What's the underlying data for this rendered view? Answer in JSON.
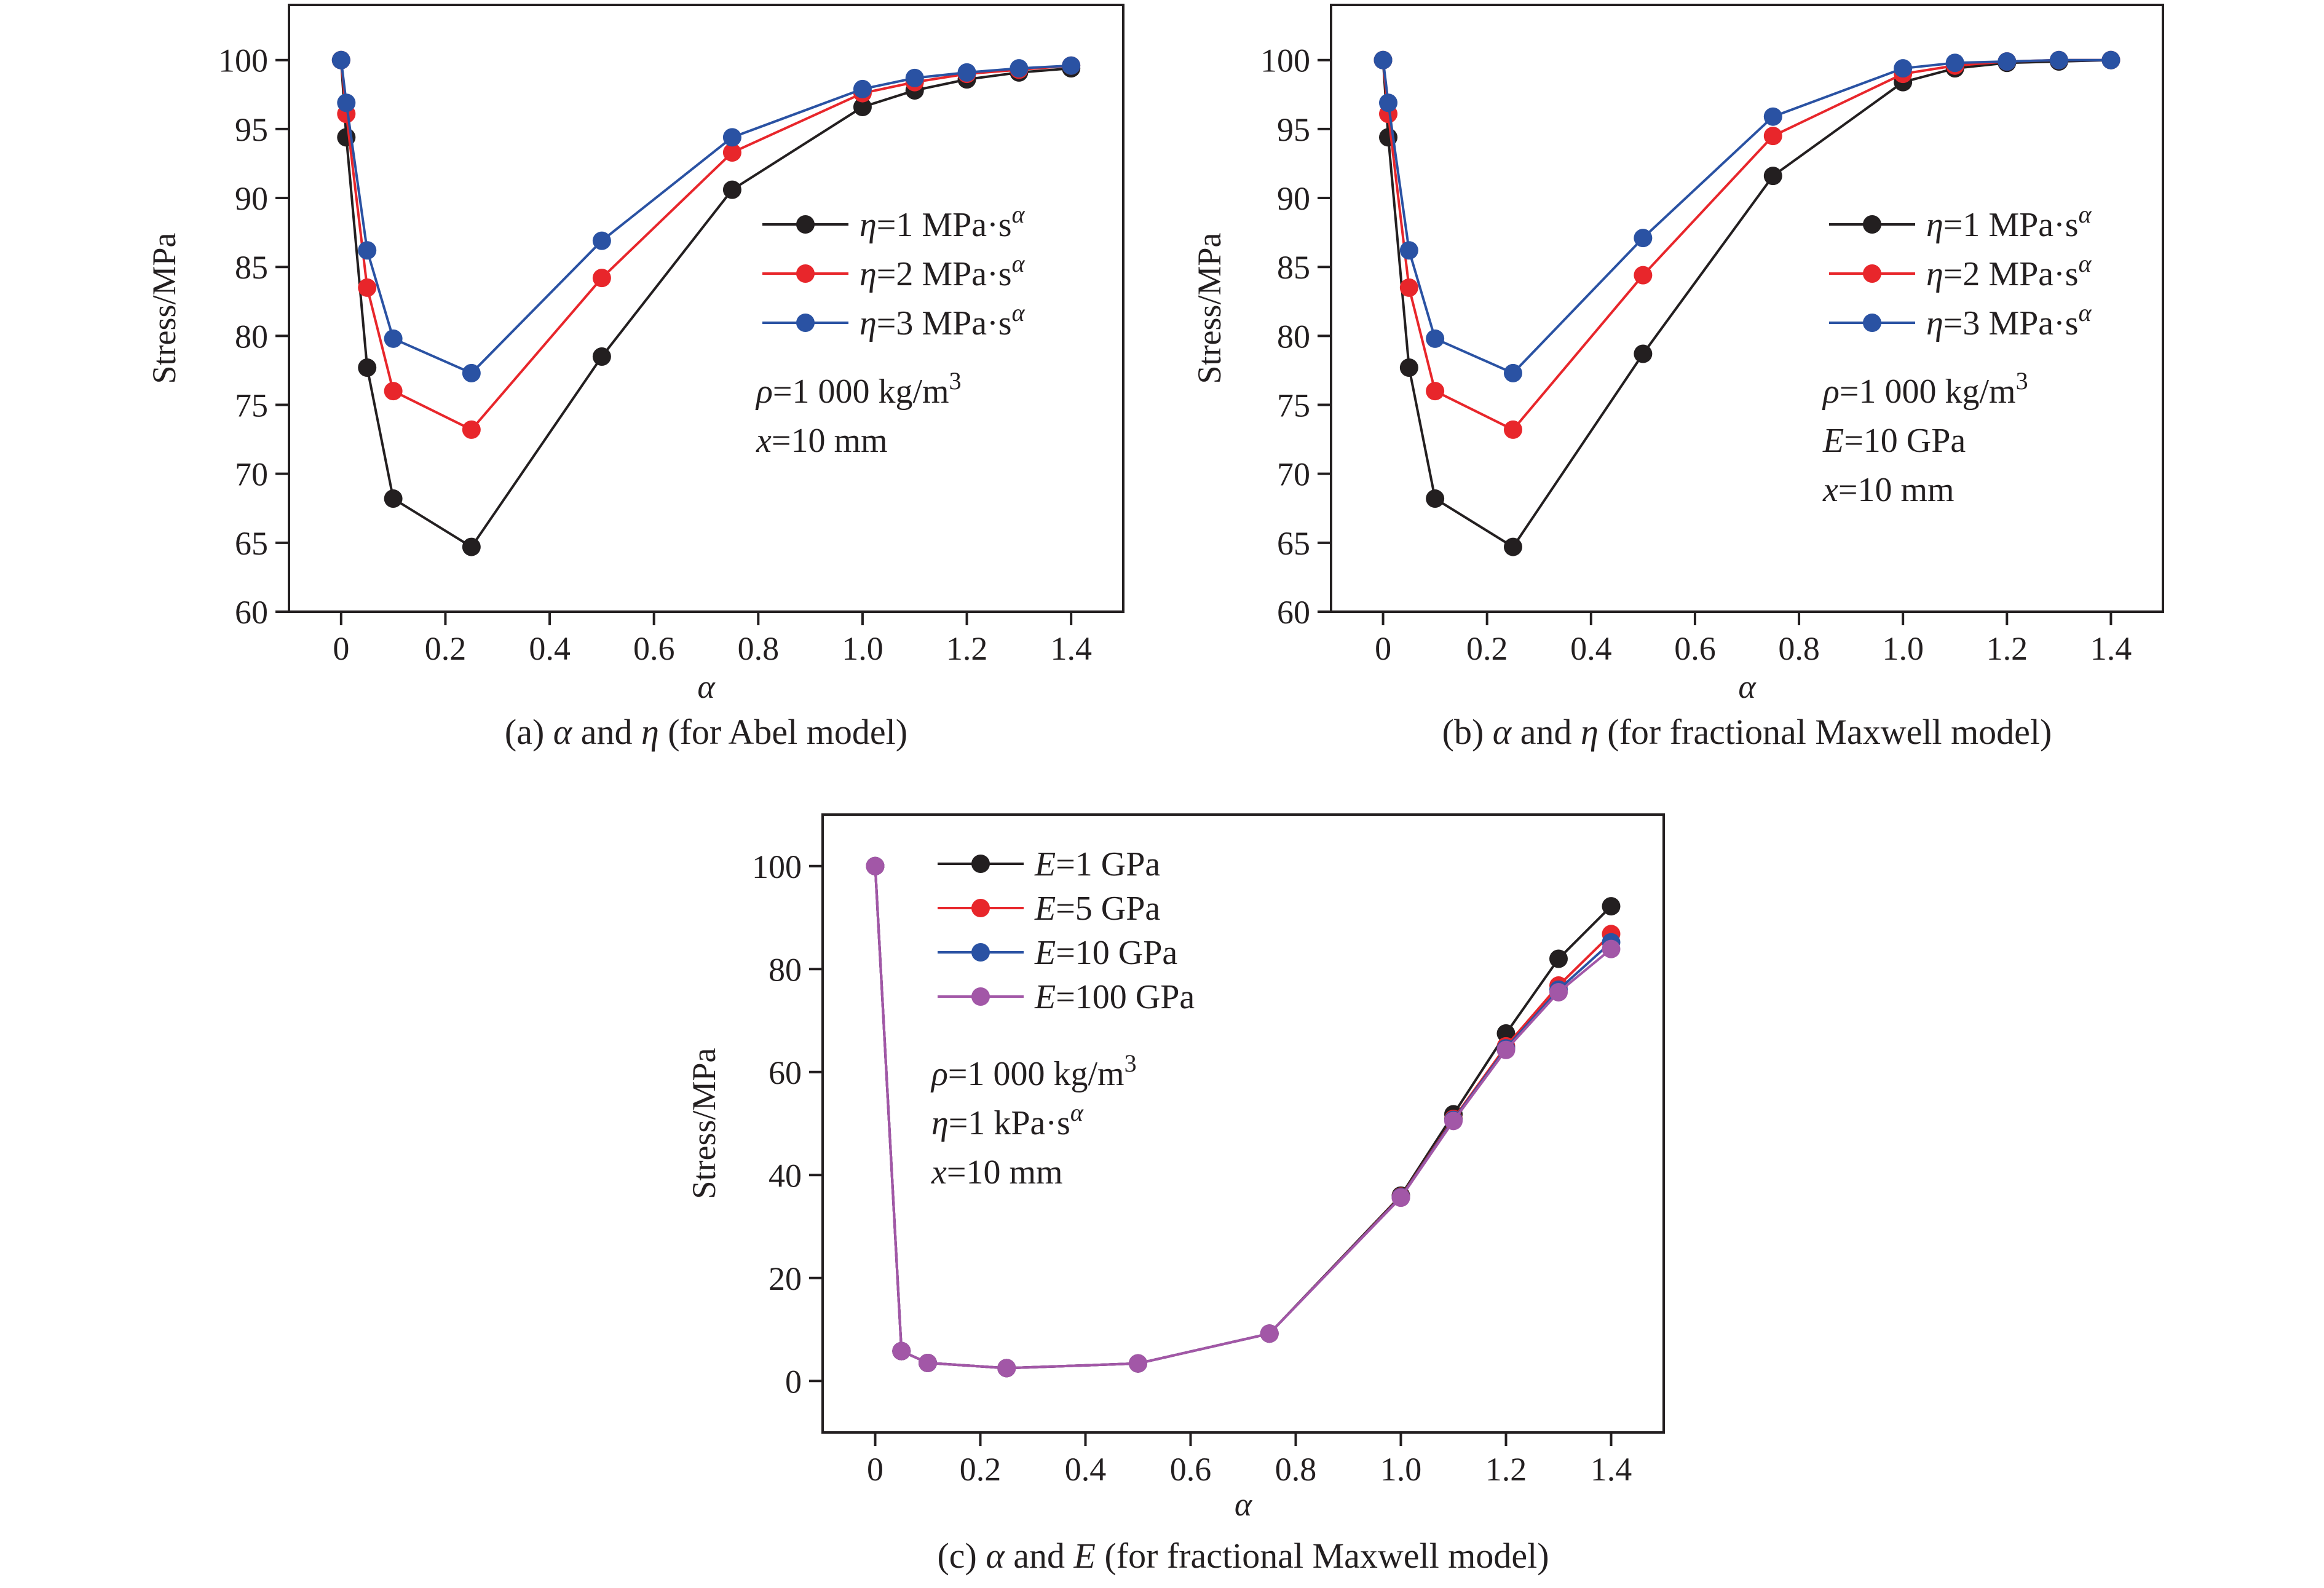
{
  "colors": {
    "black": "#231f20",
    "red": "#e8262b",
    "blue": "#2a52a3",
    "purple": "#a257a7"
  },
  "chart_data": [
    {
      "type": "line",
      "caption_prefix": "(a) ",
      "caption_a": "α",
      "caption_mid": " and ",
      "caption_b": "η",
      "caption_suffix": " (for Abel model)",
      "xlabel": "α",
      "ylabel": "Stress/MPa",
      "xlim": [
        -0.1,
        1.5
      ],
      "ylim": [
        60,
        104
      ],
      "xticks": [
        0,
        0.2,
        0.4,
        0.6,
        0.8,
        1.0,
        1.2,
        1.4
      ],
      "xtick_labels": [
        "0",
        "0.2",
        "0.4",
        "0.6",
        "0.8",
        "1.0",
        "1.2",
        "1.4"
      ],
      "yticks": [
        60,
        65,
        70,
        75,
        80,
        85,
        90,
        95,
        100
      ],
      "ytick_labels": [
        "60",
        "65",
        "70",
        "75",
        "80",
        "85",
        "90",
        "95",
        "100"
      ],
      "series": [
        {
          "symbol": "η",
          "text": "=1 MPa·s",
          "sup": "α",
          "color": "#231f20",
          "x": [
            0,
            0.01,
            0.05,
            0.1,
            0.25,
            0.5,
            0.75,
            1.0,
            1.1,
            1.2,
            1.3,
            1.4
          ],
          "y": [
            100,
            94.4,
            77.7,
            68.2,
            64.7,
            78.5,
            90.6,
            96.6,
            97.8,
            98.6,
            99.1,
            99.4
          ]
        },
        {
          "symbol": "η",
          "text": "=2 MPa·s",
          "sup": "α",
          "color": "#e8262b",
          "x": [
            0,
            0.01,
            0.05,
            0.1,
            0.25,
            0.5,
            0.75,
            1.0,
            1.1,
            1.2,
            1.3,
            1.4
          ],
          "y": [
            100,
            96.1,
            83.5,
            76.0,
            73.2,
            84.2,
            93.3,
            97.6,
            98.4,
            99.0,
            99.3,
            99.6
          ]
        },
        {
          "symbol": "η",
          "text": "=3 MPa·s",
          "sup": "α",
          "color": "#2a52a3",
          "x": [
            0,
            0.01,
            0.05,
            0.1,
            0.25,
            0.5,
            0.75,
            1.0,
            1.1,
            1.2,
            1.3,
            1.4
          ],
          "y": [
            100,
            96.9,
            86.2,
            79.8,
            77.3,
            86.9,
            94.4,
            97.9,
            98.7,
            99.1,
            99.4,
            99.6
          ]
        }
      ],
      "annotations": [
        {
          "sym": "ρ",
          "text": "=1 000 kg/m",
          "sup": "3"
        },
        {
          "sym": "x",
          "text": "=10 mm",
          "sup": ""
        }
      ]
    },
    {
      "type": "line",
      "caption_prefix": "(b) ",
      "caption_a": "α",
      "caption_mid": " and ",
      "caption_b": "η",
      "caption_suffix": " (for fractional Maxwell model)",
      "xlabel": "α",
      "ylabel": "Stress/MPa",
      "xlim": [
        -0.1,
        1.5
      ],
      "ylim": [
        60,
        104
      ],
      "xticks": [
        0,
        0.2,
        0.4,
        0.6,
        0.8,
        1.0,
        1.2,
        1.4
      ],
      "xtick_labels": [
        "0",
        "0.2",
        "0.4",
        "0.6",
        "0.8",
        "1.0",
        "1.2",
        "1.4"
      ],
      "yticks": [
        60,
        65,
        70,
        75,
        80,
        85,
        90,
        95,
        100
      ],
      "ytick_labels": [
        "60",
        "65",
        "70",
        "75",
        "80",
        "85",
        "90",
        "95",
        "100"
      ],
      "series": [
        {
          "symbol": "η",
          "text": "=1 MPa·s",
          "sup": "α",
          "color": "#231f20",
          "x": [
            0,
            0.01,
            0.05,
            0.1,
            0.25,
            0.5,
            0.75,
            1.0,
            1.1,
            1.2,
            1.3,
            1.4
          ],
          "y": [
            100,
            94.4,
            77.7,
            68.2,
            64.7,
            78.7,
            91.6,
            98.4,
            99.4,
            99.8,
            99.9,
            100
          ]
        },
        {
          "symbol": "η",
          "text": "=2 MPa·s",
          "sup": "α",
          "color": "#e8262b",
          "x": [
            0,
            0.01,
            0.05,
            0.1,
            0.25,
            0.5,
            0.75,
            1.0,
            1.1,
            1.2,
            1.3,
            1.4
          ],
          "y": [
            100,
            96.1,
            83.5,
            76.0,
            73.2,
            84.4,
            94.5,
            99.0,
            99.6,
            99.9,
            100,
            100
          ]
        },
        {
          "symbol": "η",
          "text": "=3 MPa·s",
          "sup": "α",
          "color": "#2a52a3",
          "x": [
            0,
            0.01,
            0.05,
            0.1,
            0.25,
            0.5,
            0.75,
            1.0,
            1.1,
            1.2,
            1.3,
            1.4
          ],
          "y": [
            100,
            96.9,
            86.2,
            79.8,
            77.3,
            87.1,
            95.9,
            99.4,
            99.8,
            99.9,
            100,
            100
          ]
        }
      ],
      "annotations": [
        {
          "sym": "ρ",
          "text": "=1 000 kg/m",
          "sup": "3"
        },
        {
          "sym": "E",
          "text": "=10 GPa",
          "sup": ""
        },
        {
          "sym": "x",
          "text": "=10 mm",
          "sup": ""
        }
      ]
    },
    {
      "type": "line",
      "caption_prefix": "(c) ",
      "caption_a": "α",
      "caption_mid": " and ",
      "caption_b": "E",
      "caption_suffix": " (for fractional Maxwell model)",
      "xlabel": "α",
      "ylabel": "Stress/MPa",
      "xlim": [
        -0.1,
        1.5
      ],
      "ylim": [
        -10,
        110
      ],
      "xticks": [
        0,
        0.2,
        0.4,
        0.6,
        0.8,
        1.0,
        1.2,
        1.4
      ],
      "xtick_labels": [
        "0",
        "0.2",
        "0.4",
        "0.6",
        "0.8",
        "1.0",
        "1.2",
        "1.4"
      ],
      "yticks": [
        0,
        20,
        40,
        60,
        80,
        100
      ],
      "ytick_labels": [
        "0",
        "20",
        "40",
        "60",
        "80",
        "100"
      ],
      "series": [
        {
          "symbol": "E",
          "text": "=1 GPa",
          "sup": "",
          "color": "#231f20",
          "x": [
            0,
            0.05,
            0.1,
            0.25,
            0.5,
            0.75,
            1.0,
            1.1,
            1.2,
            1.3,
            1.4
          ],
          "y": [
            100,
            5.8,
            3.5,
            2.5,
            3.4,
            9.2,
            36.0,
            51.8,
            67.5,
            82.0,
            92.2
          ]
        },
        {
          "symbol": "E",
          "text": "=5 GPa",
          "sup": "",
          "color": "#e8262b",
          "x": [
            0,
            0.05,
            0.1,
            0.25,
            0.5,
            0.75,
            1.0,
            1.1,
            1.2,
            1.3,
            1.4
          ],
          "y": [
            100,
            5.8,
            3.5,
            2.5,
            3.4,
            9.2,
            35.8,
            50.9,
            65.0,
            76.8,
            86.8
          ]
        },
        {
          "symbol": "E",
          "text": "=10 GPa",
          "sup": "",
          "color": "#2a52a3",
          "x": [
            0,
            0.05,
            0.1,
            0.25,
            0.5,
            0.75,
            1.0,
            1.1,
            1.2,
            1.3,
            1.4
          ],
          "y": [
            100,
            5.8,
            3.5,
            2.5,
            3.4,
            9.2,
            35.7,
            50.7,
            64.6,
            76.0,
            85.2
          ]
        },
        {
          "symbol": "E",
          "text": "=100 GPa",
          "sup": "",
          "color": "#a257a7",
          "x": [
            0,
            0.05,
            0.1,
            0.25,
            0.5,
            0.75,
            1.0,
            1.1,
            1.2,
            1.3,
            1.4
          ],
          "y": [
            100,
            5.8,
            3.5,
            2.5,
            3.4,
            9.2,
            35.6,
            50.5,
            64.3,
            75.5,
            83.9
          ]
        }
      ],
      "annotations": [
        {
          "sym": "ρ",
          "text": "=1 000 kg/m",
          "sup": "3"
        },
        {
          "sym": "η",
          "text": "=1 kPa·s",
          "sup": "α"
        },
        {
          "sym": "x",
          "text": "=10 mm",
          "sup": ""
        }
      ]
    }
  ]
}
